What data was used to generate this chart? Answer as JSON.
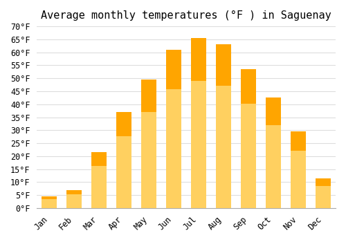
{
  "title": "Average monthly temperatures (°F ) in Saguenay",
  "months": [
    "Jan",
    "Feb",
    "Mar",
    "Apr",
    "May",
    "Jun",
    "Jul",
    "Aug",
    "Sep",
    "Oct",
    "Nov",
    "Dec"
  ],
  "values": [
    4.5,
    7.0,
    21.5,
    37.0,
    49.5,
    61.0,
    65.5,
    63.0,
    53.5,
    42.5,
    29.5,
    11.5
  ],
  "bar_color_top": "#FFA500",
  "bar_color_bottom": "#FFD060",
  "ylim": [
    0,
    70
  ],
  "yticks": [
    0,
    5,
    10,
    15,
    20,
    25,
    30,
    35,
    40,
    45,
    50,
    55,
    60,
    65,
    70
  ],
  "ytick_labels": [
    "0°F",
    "5°F",
    "10°F",
    "15°F",
    "20°F",
    "25°F",
    "30°F",
    "35°F",
    "40°F",
    "45°F",
    "50°F",
    "55°F",
    "60°F",
    "65°F",
    "70°F"
  ],
  "background_color": "#ffffff",
  "grid_color": "#dddddd",
  "title_fontsize": 11,
  "tick_fontsize": 8.5,
  "bar_edge_color": "none"
}
